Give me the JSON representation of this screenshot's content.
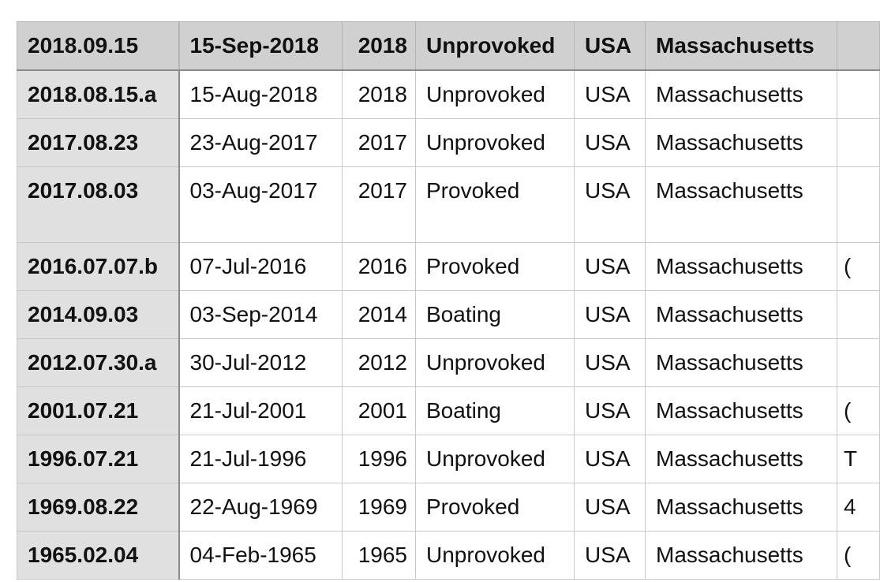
{
  "header": {
    "case": "2018.09.15",
    "date": "15-Sep-2018",
    "year": "2018",
    "type": "Unprovoked",
    "country": "USA",
    "area": "Massachusetts",
    "more": ""
  },
  "rows": [
    {
      "case": "2018.08.15.a",
      "date": "15-Aug-2018",
      "year": "2018",
      "type": "Unprovoked",
      "country": "USA",
      "area": "Massachusetts",
      "more": ""
    },
    {
      "case": "2017.08.23",
      "date": "23-Aug-2017",
      "year": "2017",
      "type": "Unprovoked",
      "country": "USA",
      "area": "Massachusetts",
      "more": ""
    },
    {
      "case": "2017.08.03",
      "date": "03-Aug-2017",
      "year": "2017",
      "type": "Provoked",
      "country": "USA",
      "area": "Massachusetts",
      "more": ""
    },
    {
      "case": "2016.07.07.b",
      "date": "07-Jul-2016",
      "year": "2016",
      "type": "Provoked",
      "country": "USA",
      "area": "Massachusetts",
      "more": "("
    },
    {
      "case": "2014.09.03",
      "date": "03-Sep-2014",
      "year": "2014",
      "type": "Boating",
      "country": "USA",
      "area": "Massachusetts",
      "more": ""
    },
    {
      "case": "2012.07.30.a",
      "date": "30-Jul-2012",
      "year": "2012",
      "type": "Unprovoked",
      "country": "USA",
      "area": "Massachusetts",
      "more": ""
    },
    {
      "case": "2001.07.21",
      "date": "21-Jul-2001",
      "year": "2001",
      "type": "Boating",
      "country": "USA",
      "area": "Massachusetts",
      "more": "("
    },
    {
      "case": "1996.07.21",
      "date": "21-Jul-1996",
      "year": "1996",
      "type": "Unprovoked",
      "country": "USA",
      "area": "Massachusetts",
      "more": "T"
    },
    {
      "case": "1969.08.22",
      "date": "22-Aug-1969",
      "year": "1969",
      "type": "Provoked",
      "country": "USA",
      "area": "Massachusetts",
      "more": "4"
    },
    {
      "case": "1965.02.04",
      "date": "04-Feb-1965",
      "year": "1965",
      "type": "Unprovoked",
      "country": "USA",
      "area": "Massachusetts",
      "more": "("
    }
  ]
}
